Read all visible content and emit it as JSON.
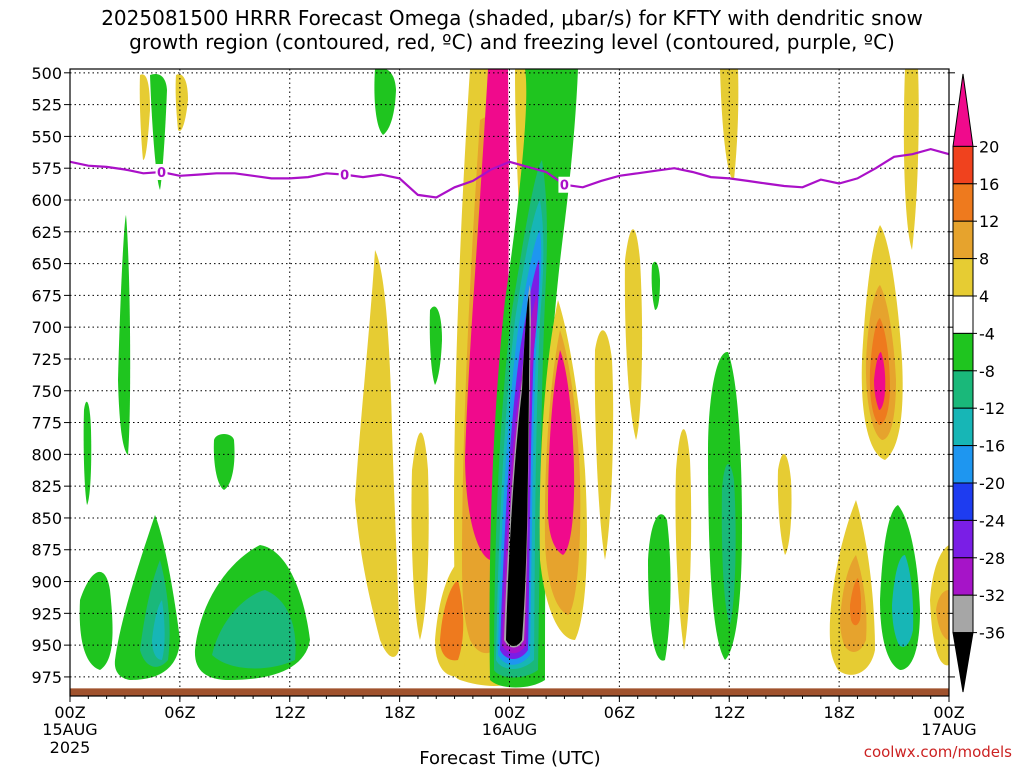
{
  "chart_data": {
    "type": "heatmap",
    "title": "2025081500 HRRR Forecast Omega (shaded, μbar/s) for KFTY with dendritic snow\ngrowth region (contoured, red, ºC) and freezing level (contoured, purple, ºC)",
    "xlabel": "Forecast Time (UTC)",
    "x_ticks": [
      {
        "label": "00Z",
        "sub": "15AUG",
        "sub2": "2025"
      },
      {
        "label": "06Z",
        "sub": "",
        "sub2": ""
      },
      {
        "label": "12Z",
        "sub": "",
        "sub2": ""
      },
      {
        "label": "18Z",
        "sub": "",
        "sub2": ""
      },
      {
        "label": "00Z",
        "sub": "16AUG",
        "sub2": ""
      },
      {
        "label": "06Z",
        "sub": "",
        "sub2": ""
      },
      {
        "label": "12Z",
        "sub": "",
        "sub2": ""
      },
      {
        "label": "18Z",
        "sub": "",
        "sub2": ""
      },
      {
        "label": "00Z",
        "sub": "17AUG",
        "sub2": ""
      }
    ],
    "x_range_hours": [
      0,
      48
    ],
    "ylabel": "",
    "y_ticks": [
      "500",
      "525",
      "550",
      "575",
      "600",
      "625",
      "650",
      "675",
      "700",
      "725",
      "750",
      "775",
      "800",
      "825",
      "850",
      "875",
      "900",
      "925",
      "950",
      "975"
    ],
    "y_range_hpa": [
      497,
      990
    ],
    "grid": true,
    "colorbar": {
      "labels": [
        "20",
        "16",
        "12",
        "8",
        "4",
        "-4",
        "-8",
        "-12",
        "-16",
        "-20",
        "-24",
        "-28",
        "-32",
        "-36"
      ],
      "colors": [
        "#f00a8c",
        "#f0421e",
        "#ee7a1e",
        "#e6a32d",
        "#e6cc33",
        "#ffffff",
        "#1fc51f",
        "#1ab87a",
        "#17b6b6",
        "#1e96f0",
        "#1e3cf0",
        "#7a1ee6",
        "#a614c8",
        "#a6a6a6",
        "#000000"
      ]
    },
    "freezing_level": {
      "label": "0",
      "color": "#aa10c8",
      "hours": [
        0,
        1,
        2,
        3,
        4,
        5,
        6,
        7,
        8,
        9,
        10,
        11,
        12,
        13,
        14,
        15,
        16,
        17,
        18,
        19,
        20,
        21,
        22,
        23,
        24,
        25,
        26,
        27,
        28,
        29,
        30,
        31,
        32,
        33,
        34,
        35,
        36,
        37,
        38,
        39,
        40,
        41,
        42,
        43,
        44,
        45,
        46,
        47,
        48
      ],
      "pressure_hpa": [
        570,
        573,
        574,
        576,
        579,
        578,
        581,
        580,
        579,
        579,
        581,
        583,
        583,
        582,
        579,
        580,
        582,
        580,
        583,
        596,
        598,
        590,
        585,
        576,
        570,
        574,
        578,
        588,
        590,
        585,
        581,
        579,
        577,
        575,
        578,
        582,
        583,
        585,
        587,
        589,
        590,
        584,
        587,
        583,
        575,
        566,
        564,
        560,
        564
      ]
    },
    "ground_band": {
      "color": "#a0522d",
      "pressure_hpa": 984
    },
    "credit": "coolwx.com/models"
  }
}
